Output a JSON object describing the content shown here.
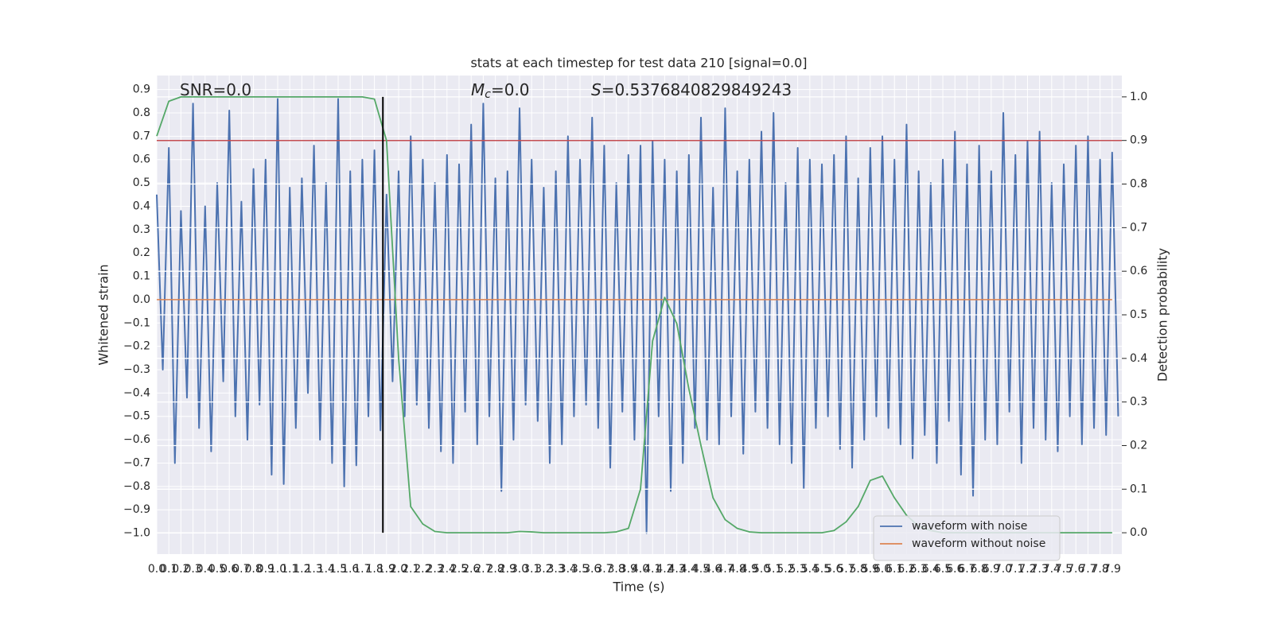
{
  "chart_data": {
    "type": "line",
    "title": "stats at each timestep for test data 210 [signal=0.0]",
    "xlabel": "Time (s)",
    "ylabel": "Whitened strain",
    "y2label": "Detection probability",
    "annotations": [
      {
        "text": "SNR=0.0"
      },
      {
        "italic": "M",
        "sub": "c",
        "text": "=0.0"
      },
      {
        "italic": "S",
        "text": "=0.5376840829849243"
      }
    ],
    "xlim": [
      0,
      7.98
    ],
    "ylim": [
      -1.09,
      0.96
    ],
    "y2lim": [
      -0.049,
      1.049
    ],
    "grid": true,
    "legend": "lower right",
    "x": [
      0.0,
      0.1,
      0.2,
      0.3,
      0.4,
      0.5,
      0.6,
      0.7,
      0.8,
      0.9,
      1.0,
      1.1,
      1.2,
      1.3,
      1.4,
      1.5,
      1.6,
      1.7,
      1.8,
      1.9,
      2.0,
      2.1,
      2.2,
      2.3,
      2.4,
      2.5,
      2.6,
      2.7,
      2.8,
      2.9,
      3.0,
      3.1,
      3.2,
      3.3,
      3.4,
      3.5,
      3.6,
      3.7,
      3.8,
      3.9,
      4.0,
      4.1,
      4.2,
      4.3,
      4.4,
      4.5,
      4.6,
      4.7,
      4.8,
      4.9,
      5.0,
      5.1,
      5.2,
      5.3,
      5.4,
      5.5,
      5.6,
      5.7,
      5.8,
      5.9,
      6.0,
      6.1,
      6.2,
      6.3,
      6.4,
      6.5,
      6.6,
      6.7,
      6.8,
      6.9,
      7.0,
      7.1,
      7.2,
      7.3,
      7.4,
      7.5,
      7.6,
      7.7,
      7.8,
      7.9
    ],
    "xticks": [
      {
        "value": 0,
        "label": "0.0"
      },
      0.1,
      0.2,
      0.3,
      0.4,
      0.5,
      0.6,
      0.7,
      0.8,
      0.9,
      {
        "value": 1,
        "label": "1.0"
      },
      1.1,
      1.2,
      1.3,
      1.4,
      1.5,
      1.6,
      1.7,
      1.8,
      1.9,
      {
        "value": 2,
        "label": "2.0"
      },
      2.1,
      2.2,
      2.3,
      2.4,
      2.5,
      2.6,
      2.7,
      2.8,
      2.9,
      {
        "value": 3,
        "label": "3.0"
      },
      3.1,
      3.2,
      3.3,
      3.4,
      3.5,
      3.6,
      3.7,
      3.8,
      3.9,
      {
        "value": 4,
        "label": "4.0"
      },
      4.1,
      4.2,
      4.3,
      4.4,
      4.5,
      4.6,
      4.7,
      4.8,
      4.9,
      {
        "value": 5,
        "label": "5.0"
      },
      5.1,
      5.2,
      5.3,
      5.4,
      5.5,
      5.6,
      5.7,
      5.8,
      5.9,
      {
        "value": 6,
        "label": "6.0"
      },
      6.1,
      6.2,
      6.3,
      6.4,
      6.5,
      6.6,
      6.7,
      6.8,
      6.9,
      {
        "value": 7,
        "label": "7.0"
      },
      7.1,
      7.2,
      7.3,
      7.4,
      7.5,
      7.6,
      7.7,
      7.8,
      7.9
    ],
    "yticks": [
      {
        "value": -1.0,
        "label": "−1.0"
      },
      {
        "value": -0.9,
        "label": "−0.9"
      },
      {
        "value": -0.8,
        "label": "−0.8"
      },
      {
        "value": -0.7,
        "label": "−0.7"
      },
      {
        "value": -0.6,
        "label": "−0.6"
      },
      {
        "value": -0.5,
        "label": "−0.5"
      },
      {
        "value": -0.4,
        "label": "−0.4"
      },
      {
        "value": -0.3,
        "label": "−0.3"
      },
      {
        "value": -0.2,
        "label": "−0.2"
      },
      {
        "value": -0.1,
        "label": "−0.1"
      },
      {
        "value": 0,
        "label": "0.0"
      },
      0.1,
      0.2,
      0.3,
      0.4,
      0.5,
      0.6,
      0.7,
      0.8,
      0.9
    ],
    "y2ticks": [
      {
        "value": 0,
        "label": "0.0"
      },
      0.1,
      0.2,
      0.3,
      0.4,
      0.5,
      0.6,
      0.7,
      0.8,
      0.9,
      {
        "value": 1,
        "label": "1.0"
      }
    ],
    "series": [
      {
        "name": "waveform with noise",
        "color": "#4c72b0",
        "x": [
          0.0,
          0.05,
          0.1,
          0.15,
          0.2,
          0.25,
          0.3,
          0.35,
          0.4,
          0.45,
          0.5,
          0.55,
          0.6,
          0.65,
          0.7,
          0.75,
          0.8,
          0.85,
          0.9,
          0.95,
          1.0,
          1.05,
          1.1,
          1.15,
          1.2,
          1.25,
          1.3,
          1.35,
          1.4,
          1.45,
          1.5,
          1.55,
          1.6,
          1.65,
          1.7,
          1.75,
          1.8,
          1.85,
          1.9,
          1.95,
          2.0,
          2.05,
          2.1,
          2.15,
          2.2,
          2.25,
          2.3,
          2.35,
          2.4,
          2.45,
          2.5,
          2.55,
          2.6,
          2.65,
          2.7,
          2.75,
          2.8,
          2.85,
          2.9,
          2.95,
          3.0,
          3.05,
          3.1,
          3.15,
          3.2,
          3.25,
          3.3,
          3.35,
          3.4,
          3.45,
          3.5,
          3.55,
          3.6,
          3.65,
          3.7,
          3.75,
          3.8,
          3.85,
          3.9,
          3.95,
          4.0,
          4.05,
          4.1,
          4.15,
          4.2,
          4.25,
          4.3,
          4.35,
          4.4,
          4.45,
          4.5,
          4.55,
          4.6,
          4.65,
          4.7,
          4.75,
          4.8,
          4.85,
          4.9,
          4.95,
          5.0,
          5.05,
          5.1,
          5.15,
          5.2,
          5.25,
          5.3,
          5.35,
          5.4,
          5.45,
          5.5,
          5.55,
          5.6,
          5.65,
          5.7,
          5.75,
          5.8,
          5.85,
          5.9,
          5.95,
          6.0,
          6.05,
          6.1,
          6.15,
          6.2,
          6.25,
          6.3,
          6.35,
          6.4,
          6.45,
          6.5,
          6.55,
          6.6,
          6.65,
          6.7,
          6.75,
          6.8,
          6.85,
          6.9,
          6.95,
          7.0,
          7.05,
          7.1,
          7.15,
          7.2,
          7.25,
          7.3,
          7.35,
          7.4,
          7.45,
          7.5,
          7.55,
          7.6,
          7.65,
          7.7,
          7.75,
          7.8,
          7.85,
          7.9,
          7.95
        ],
        "values": [
          0.45,
          -0.3,
          0.65,
          -0.7,
          0.38,
          -0.42,
          0.84,
          -0.55,
          0.4,
          -0.65,
          0.5,
          -0.35,
          0.81,
          -0.5,
          0.42,
          -0.6,
          0.56,
          -0.45,
          0.6,
          -0.75,
          0.86,
          -0.79,
          0.48,
          -0.55,
          0.52,
          -0.4,
          0.66,
          -0.6,
          0.5,
          -0.7,
          0.86,
          -0.8,
          0.55,
          -0.71,
          0.6,
          -0.5,
          0.64,
          -0.56,
          0.45,
          -0.35,
          0.55,
          -0.5,
          0.7,
          -0.45,
          0.6,
          -0.55,
          0.5,
          -0.65,
          0.62,
          -0.7,
          0.58,
          -0.48,
          0.75,
          -0.62,
          0.84,
          -0.5,
          0.52,
          -0.82,
          0.55,
          -0.6,
          0.82,
          -0.45,
          0.6,
          -0.52,
          0.48,
          -0.7,
          0.55,
          -0.62,
          0.7,
          -0.5,
          0.6,
          -0.45,
          0.78,
          -0.55,
          0.66,
          -0.72,
          0.5,
          -0.48,
          0.62,
          -0.6,
          0.66,
          -1.0,
          0.68,
          -0.5,
          0.6,
          -0.82,
          0.55,
          -0.7,
          0.62,
          -0.55,
          0.78,
          -0.6,
          0.48,
          -0.62,
          0.82,
          -0.5,
          0.55,
          -0.66,
          0.6,
          -0.48,
          0.72,
          -0.55,
          0.8,
          -0.62,
          0.5,
          -0.7,
          0.65,
          -0.81,
          0.6,
          -0.55,
          0.58,
          -0.5,
          0.62,
          -0.64,
          0.7,
          -0.72,
          0.52,
          -0.6,
          0.65,
          -0.5,
          0.7,
          -0.55,
          0.6,
          -0.62,
          0.75,
          -0.68,
          0.55,
          -0.58,
          0.5,
          -0.7,
          0.6,
          -0.52,
          0.72,
          -0.75,
          0.58,
          -0.84,
          0.66,
          -0.6,
          0.55,
          -0.62,
          0.8,
          -0.48,
          0.62,
          -0.7,
          0.68,
          -0.55,
          0.72,
          -0.6,
          0.5,
          -0.65,
          0.58,
          -0.5,
          0.66,
          -0.62,
          0.7,
          -0.55,
          0.6,
          -0.58,
          0.63,
          -0.5
        ]
      },
      {
        "name": "waveform without noise",
        "color": "#dd8452",
        "values": [
          0,
          0,
          0,
          0,
          0,
          0,
          0,
          0,
          0,
          0,
          0,
          0,
          0,
          0,
          0,
          0,
          0,
          0,
          0,
          0,
          0,
          0,
          0,
          0,
          0,
          0,
          0,
          0,
          0,
          0,
          0,
          0,
          0,
          0,
          0,
          0,
          0,
          0,
          0,
          0,
          0,
          0,
          0,
          0,
          0,
          0,
          0,
          0,
          0,
          0,
          0,
          0,
          0,
          0,
          0,
          0,
          0,
          0,
          0,
          0,
          0,
          0,
          0,
          0,
          0,
          0,
          0,
          0,
          0,
          0,
          0,
          0,
          0,
          0,
          0,
          0,
          0,
          0,
          0,
          0
        ]
      },
      {
        "color": "#55a868",
        "axis": "y2",
        "values": [
          0.91,
          0.99,
          1.0,
          1.0,
          1.0,
          1.0,
          1.0,
          1.0,
          1.0,
          1.0,
          1.0,
          1.0,
          1.0,
          1.0,
          1.0,
          1.0,
          1.0,
          1.0,
          0.995,
          0.9,
          0.4,
          0.06,
          0.02,
          0.003,
          0,
          0,
          0,
          0,
          0,
          0,
          0.003,
          0.002,
          0,
          0,
          0,
          0,
          0,
          0,
          0.002,
          0.01,
          0.1,
          0.44,
          0.54,
          0.48,
          0.33,
          0.2,
          0.08,
          0.03,
          0.01,
          0.002,
          0,
          0,
          0,
          0,
          0,
          0,
          0.005,
          0.025,
          0.06,
          0.12,
          0.13,
          0.08,
          0.04,
          0.015,
          0.005,
          0,
          0,
          0,
          0,
          0,
          0,
          0,
          0,
          0,
          0,
          0,
          0,
          0,
          0,
          0
        ]
      }
    ],
    "hlines": [
      {
        "value": 0.9,
        "axis": "y2",
        "color": "#c44e52"
      }
    ],
    "vlines": [
      {
        "x": 1.87,
        "y2range": [
          0,
          1
        ],
        "color": "#000000"
      }
    ]
  }
}
